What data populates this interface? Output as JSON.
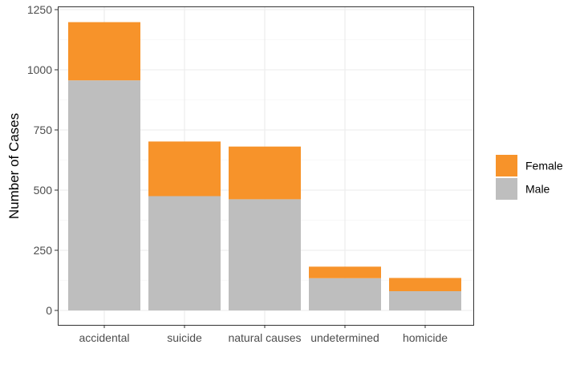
{
  "chart_data": {
    "type": "bar",
    "stacked": true,
    "title": "",
    "xlabel": "",
    "ylabel": "Number of Cases",
    "categories": [
      "accidental",
      "suicide",
      "natural causes",
      "undetermined",
      "homicide"
    ],
    "series": [
      {
        "name": "Male",
        "color": "#bebebe",
        "values": [
          956,
          475,
          462,
          134,
          80
        ]
      },
      {
        "name": "Female",
        "color": "#f7932a",
        "values": [
          242,
          227,
          219,
          48,
          55
        ]
      }
    ],
    "ylim": [
      0,
      1250
    ],
    "yticks": [
      0,
      250,
      500,
      750,
      1000,
      1250
    ],
    "grid": true,
    "legend": {
      "position": "right",
      "entries": [
        "Female",
        "Male"
      ]
    }
  }
}
